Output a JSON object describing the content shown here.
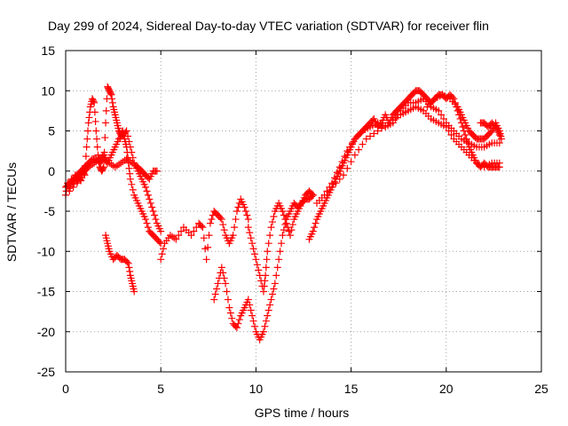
{
  "chart_data": {
    "type": "scatter",
    "title": "Day 299 of 2024, Sidereal Day-to-day VTEC variation (SDTVAR) for receiver flin",
    "xlabel": "GPS time / hours",
    "ylabel": "SDTVAR / TECUs",
    "xlim": [
      0,
      25
    ],
    "ylim": [
      -25,
      15
    ],
    "xticks": [
      "0",
      "5",
      "10",
      "15",
      "20",
      "25"
    ],
    "yticks": [
      "15",
      "10",
      "5",
      "0",
      "-5",
      "-10",
      "-15",
      "-20",
      "-25"
    ],
    "grid": true,
    "marker": "plus",
    "color": "#ff0000",
    "series": [
      {
        "points": [
          [
            0.0,
            -3
          ],
          [
            0.1,
            -1.5
          ],
          [
            0.2,
            -2.5
          ],
          [
            0.3,
            -1
          ],
          [
            0.4,
            -2
          ],
          [
            0.5,
            -0.5
          ],
          [
            0.6,
            -1.5
          ],
          [
            0.7,
            -0.8
          ],
          [
            0.8,
            -1.2
          ],
          [
            0.9,
            0
          ],
          [
            1.0,
            -0.5
          ],
          [
            1.1,
            3
          ],
          [
            1.2,
            6
          ],
          [
            1.3,
            8
          ],
          [
            1.4,
            9
          ],
          [
            1.5,
            8.5
          ],
          [
            1.6,
            5
          ],
          [
            1.7,
            2
          ],
          [
            1.8,
            0.5
          ],
          [
            1.9,
            0
          ],
          [
            2.0,
            0.5
          ],
          [
            2.1,
            6
          ],
          [
            2.2,
            10.5
          ],
          [
            2.3,
            10
          ],
          [
            2.4,
            9.5
          ],
          [
            2.5,
            8
          ],
          [
            2.6,
            7
          ],
          [
            2.7,
            6
          ],
          [
            2.8,
            5
          ],
          [
            2.9,
            4.5
          ],
          [
            3.0,
            5
          ],
          [
            3.1,
            4
          ],
          [
            3.2,
            3
          ],
          [
            3.3,
            1
          ],
          [
            3.4,
            -1
          ],
          [
            3.6,
            -3
          ],
          [
            3.8,
            -4
          ],
          [
            4.0,
            -5
          ],
          [
            4.2,
            -6
          ],
          [
            4.4,
            -7.5
          ],
          [
            4.6,
            -8
          ],
          [
            4.8,
            -8.5
          ],
          [
            5.0,
            -9
          ]
        ]
      },
      {
        "points": [
          [
            0.0,
            -2
          ],
          [
            0.2,
            -1.5
          ],
          [
            0.4,
            -1
          ],
          [
            0.6,
            -0.5
          ],
          [
            0.8,
            0
          ],
          [
            1.0,
            0.5
          ],
          [
            1.2,
            1
          ],
          [
            1.4,
            1.5
          ],
          [
            1.6,
            1.5
          ],
          [
            1.8,
            1
          ],
          [
            2.0,
            1.5
          ],
          [
            2.2,
            1
          ],
          [
            2.4,
            2
          ],
          [
            2.6,
            3
          ],
          [
            2.8,
            4
          ],
          [
            3.0,
            4.5
          ],
          [
            3.2,
            5
          ],
          [
            3.4,
            3
          ],
          [
            3.6,
            1
          ],
          [
            3.8,
            0
          ],
          [
            4.0,
            -1
          ],
          [
            4.2,
            -2
          ],
          [
            4.4,
            -3.5
          ],
          [
            4.6,
            -5
          ],
          [
            4.8,
            -6.5
          ],
          [
            5.0,
            -7.5
          ]
        ]
      },
      {
        "points": [
          [
            0.5,
            -1
          ],
          [
            0.8,
            -0.5
          ],
          [
            1.0,
            0
          ],
          [
            1.2,
            0.5
          ],
          [
            1.5,
            1
          ],
          [
            1.8,
            1.5
          ],
          [
            2.0,
            2
          ],
          [
            2.3,
            1
          ],
          [
            2.6,
            0.5
          ],
          [
            2.9,
            1
          ],
          [
            3.2,
            1.5
          ],
          [
            3.5,
            1
          ],
          [
            3.8,
            0.5
          ],
          [
            4.0,
            0
          ],
          [
            4.2,
            -0.5
          ],
          [
            4.4,
            -1
          ],
          [
            4.6,
            0
          ],
          [
            4.8,
            0
          ]
        ]
      },
      {
        "points": [
          [
            2.1,
            -8
          ],
          [
            2.2,
            -9
          ],
          [
            2.3,
            -10
          ],
          [
            2.5,
            -11
          ],
          [
            2.7,
            -10.5
          ],
          [
            2.9,
            -11
          ],
          [
            3.1,
            -11
          ],
          [
            3.3,
            -11.5
          ],
          [
            3.4,
            -13
          ],
          [
            3.5,
            -14
          ],
          [
            3.6,
            -15
          ]
        ]
      },
      {
        "points": [
          [
            5.0,
            -11
          ],
          [
            5.2,
            -9
          ],
          [
            5.5,
            -8
          ],
          [
            5.8,
            -8.5
          ],
          [
            6.2,
            -7
          ],
          [
            6.6,
            -8
          ],
          [
            7.0,
            -6.5
          ],
          [
            7.2,
            -7
          ],
          [
            7.4,
            -11
          ],
          [
            7.6,
            -6.5
          ],
          [
            7.8,
            -5
          ],
          [
            8.0,
            -5.5
          ],
          [
            8.2,
            -6
          ],
          [
            8.4,
            -8
          ],
          [
            8.6,
            -9
          ],
          [
            8.8,
            -8
          ],
          [
            9.0,
            -5
          ],
          [
            9.2,
            -3.5
          ],
          [
            9.4,
            -4.5
          ],
          [
            9.6,
            -6
          ]
        ]
      },
      {
        "points": [
          [
            7.8,
            -16
          ],
          [
            8.0,
            -14
          ],
          [
            8.2,
            -12
          ],
          [
            8.4,
            -14
          ],
          [
            8.6,
            -17
          ],
          [
            8.8,
            -19
          ],
          [
            9.0,
            -19.5
          ],
          [
            9.2,
            -18
          ],
          [
            9.4,
            -17
          ],
          [
            9.6,
            -16
          ],
          [
            9.8,
            -18
          ],
          [
            10.0,
            -20
          ],
          [
            10.2,
            -21
          ],
          [
            10.4,
            -20
          ],
          [
            10.6,
            -18
          ],
          [
            10.8,
            -16
          ],
          [
            11.0,
            -14
          ],
          [
            11.2,
            -11
          ],
          [
            11.4,
            -8
          ],
          [
            11.6,
            -6
          ],
          [
            11.8,
            -5
          ],
          [
            12.0,
            -4
          ],
          [
            12.2,
            -4.5
          ],
          [
            12.4,
            -4
          ],
          [
            12.6,
            -3
          ],
          [
            12.8,
            -2.5
          ],
          [
            13.0,
            -3
          ]
        ]
      },
      {
        "points": [
          [
            9.6,
            -7
          ],
          [
            9.8,
            -9
          ],
          [
            10.0,
            -11
          ],
          [
            10.2,
            -13
          ],
          [
            10.4,
            -15
          ],
          [
            10.5,
            -13
          ],
          [
            10.6,
            -10
          ],
          [
            10.8,
            -7
          ],
          [
            11.0,
            -5
          ],
          [
            11.2,
            -4
          ],
          [
            11.4,
            -5
          ],
          [
            11.6,
            -6.5
          ],
          [
            11.8,
            -8
          ],
          [
            12.0,
            -6
          ],
          [
            12.2,
            -5
          ],
          [
            12.4,
            -4
          ],
          [
            12.6,
            -3.5
          ],
          [
            12.8,
            -3.5
          ],
          [
            13.0,
            -3
          ]
        ]
      },
      {
        "points": [
          [
            12.8,
            -8.5
          ],
          [
            13.0,
            -7.5
          ],
          [
            13.2,
            -6
          ],
          [
            13.4,
            -5
          ],
          [
            13.6,
            -4
          ],
          [
            13.8,
            -3
          ],
          [
            14.0,
            -2
          ],
          [
            14.2,
            -1
          ],
          [
            14.4,
            0
          ],
          [
            14.6,
            1
          ],
          [
            14.8,
            2
          ],
          [
            15.0,
            3
          ],
          [
            15.2,
            4
          ],
          [
            15.4,
            4.5
          ],
          [
            15.6,
            5
          ],
          [
            15.8,
            5.5
          ],
          [
            16.0,
            6
          ],
          [
            16.2,
            6.5
          ],
          [
            16.4,
            5.5
          ],
          [
            16.6,
            6
          ],
          [
            16.8,
            7
          ],
          [
            17.0,
            6
          ],
          [
            17.2,
            7
          ],
          [
            17.4,
            7.5
          ],
          [
            17.6,
            8
          ],
          [
            17.8,
            8.5
          ],
          [
            18.0,
            9
          ],
          [
            18.2,
            9.5
          ],
          [
            18.4,
            10
          ],
          [
            18.6,
            10
          ],
          [
            18.8,
            9.5
          ],
          [
            19.0,
            9
          ],
          [
            19.2,
            8.5
          ],
          [
            19.4,
            9
          ],
          [
            19.6,
            9.5
          ],
          [
            19.8,
            9.5
          ],
          [
            20.0,
            9
          ],
          [
            20.2,
            9.5
          ],
          [
            20.4,
            9
          ],
          [
            20.6,
            7.5
          ],
          [
            20.8,
            6
          ],
          [
            21.0,
            4.5
          ],
          [
            21.2,
            3
          ],
          [
            21.4,
            2
          ],
          [
            21.6,
            1
          ],
          [
            21.8,
            0.5
          ],
          [
            22.0,
            1
          ],
          [
            22.2,
            0.5
          ],
          [
            22.4,
            0.5
          ],
          [
            22.6,
            0.5
          ],
          [
            22.8,
            0.5
          ]
        ]
      },
      {
        "points": [
          [
            13.2,
            -4
          ],
          [
            13.6,
            -3
          ],
          [
            14.0,
            -1.5
          ],
          [
            14.4,
            0.5
          ],
          [
            14.8,
            2.5
          ],
          [
            15.2,
            4
          ],
          [
            15.6,
            5
          ],
          [
            16.0,
            5.5
          ],
          [
            16.4,
            6
          ],
          [
            16.8,
            5.5
          ],
          [
            17.2,
            6
          ],
          [
            17.6,
            7.5
          ],
          [
            18.0,
            8.5
          ],
          [
            18.4,
            8.5
          ],
          [
            18.8,
            9
          ],
          [
            19.2,
            8
          ],
          [
            19.6,
            7.5
          ],
          [
            20.0,
            6
          ],
          [
            20.4,
            5
          ],
          [
            20.8,
            4
          ],
          [
            21.2,
            3.5
          ],
          [
            21.6,
            3
          ],
          [
            22.0,
            3
          ],
          [
            22.4,
            3.5
          ],
          [
            22.8,
            3.5
          ]
        ]
      },
      {
        "points": [
          [
            14.0,
            -2
          ],
          [
            14.6,
            -0.5
          ],
          [
            15.2,
            2
          ],
          [
            15.8,
            4
          ],
          [
            16.4,
            5
          ],
          [
            17.0,
            6
          ],
          [
            17.6,
            7
          ],
          [
            18.0,
            7.5
          ],
          [
            18.4,
            8
          ],
          [
            18.8,
            7.5
          ],
          [
            19.2,
            6.5
          ],
          [
            19.6,
            6
          ],
          [
            20.0,
            5.5
          ],
          [
            20.4,
            4
          ],
          [
            20.8,
            3
          ],
          [
            21.2,
            2
          ],
          [
            21.6,
            1
          ],
          [
            22.0,
            0.5
          ],
          [
            22.4,
            1
          ],
          [
            22.8,
            1
          ]
        ]
      },
      {
        "points": [
          [
            19.0,
            8
          ],
          [
            19.4,
            9
          ],
          [
            19.8,
            9.5
          ],
          [
            20.2,
            9
          ],
          [
            20.6,
            8
          ],
          [
            20.8,
            7
          ],
          [
            21.0,
            6
          ],
          [
            21.2,
            5
          ],
          [
            21.4,
            4.5
          ],
          [
            21.6,
            4
          ],
          [
            21.8,
            4
          ],
          [
            22.0,
            4
          ],
          [
            22.2,
            4.5
          ],
          [
            22.4,
            5
          ],
          [
            22.6,
            6
          ],
          [
            22.8,
            5
          ],
          [
            22.9,
            4
          ]
        ]
      },
      {
        "points": [
          [
            21.8,
            6
          ],
          [
            22.0,
            6
          ],
          [
            22.2,
            5.5
          ],
          [
            22.4,
            6
          ],
          [
            22.6,
            5.5
          ],
          [
            22.8,
            4.5
          ]
        ]
      }
    ]
  }
}
